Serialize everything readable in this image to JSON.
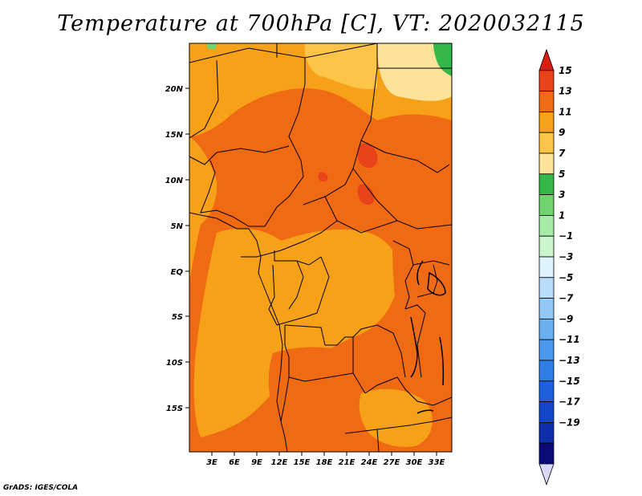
{
  "title": "Temperature at 700hPa [C], VT: 2020032115",
  "credit": "GrADS: IGES/COLA",
  "map": {
    "lat_labels": [
      "20N",
      "15N",
      "10N",
      "5N",
      "EQ",
      "5S",
      "10S",
      "15S"
    ],
    "lon_labels": [
      "3E",
      "6E",
      "9E",
      "12E",
      "15E",
      "18E",
      "21E",
      "24E",
      "27E",
      "30E",
      "33E"
    ],
    "colors": {
      "warm_11": "#f06a14",
      "warm_9": "#f7a118",
      "warm_13": "#e8431a",
      "warm_7": "#fcc54a",
      "warm_5": "#fde39a",
      "cold_3": "#34b84a",
      "cold_1": "#6fd36f",
      "border": "#000000",
      "lake": "#000000"
    }
  },
  "colorbar": {
    "labels": [
      "15",
      "13",
      "11",
      "9",
      "7",
      "5",
      "3",
      "1",
      "−1",
      "−3",
      "−5",
      "−7",
      "−9",
      "−11",
      "−13",
      "−15",
      "−17",
      "−19"
    ],
    "colors": [
      "#d8d8f8",
      "#0a0a78",
      "#0e2da8",
      "#1446c8",
      "#1e5fdc",
      "#2f7ee6",
      "#4a98ee",
      "#6cb0f2",
      "#93c7f6",
      "#b9dcfa",
      "#dff2ff",
      "#cdf5cd",
      "#a6eba6",
      "#6fd36f",
      "#34b84a",
      "#fde39a",
      "#fcc54a",
      "#f7a118",
      "#f06a14",
      "#e8431a",
      "#d81e12"
    ]
  }
}
